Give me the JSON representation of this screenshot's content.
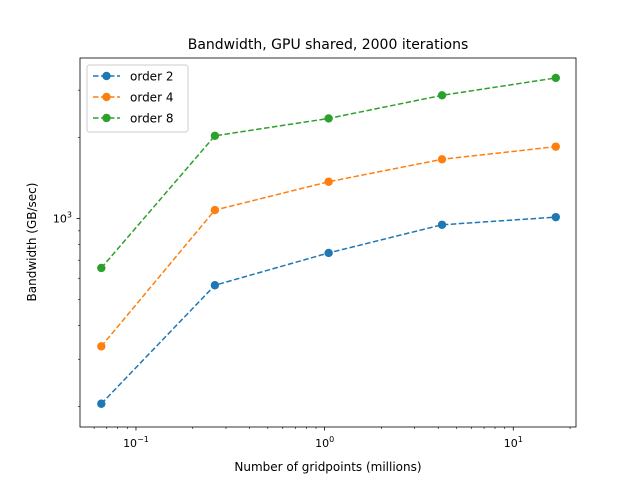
{
  "chart_data": {
    "type": "line",
    "title": "Bandwidth, GPU shared, 2000 iterations",
    "xlabel": "Number of gridpoints (millions)",
    "ylabel": "Bandwidth (GB/sec)",
    "xscale": "log",
    "yscale": "log",
    "xlim": [
      0.0505,
      21.5
    ],
    "ylim": [
      168,
      3950
    ],
    "x_ticks": [
      {
        "value": 0.1,
        "base": "10",
        "exp": "−1"
      },
      {
        "value": 1,
        "base": "10",
        "exp": "0"
      },
      {
        "value": 10,
        "base": "10",
        "exp": "1"
      }
    ],
    "y_ticks": [
      {
        "value": 1000,
        "base": "10",
        "exp": "3"
      }
    ],
    "x": [
      0.0655,
      0.262,
      1.05,
      4.19,
      16.8
    ],
    "series": [
      {
        "name": "order 2",
        "color": "#1f77b4",
        "values": [
          205,
          565,
          745,
          948,
          1012
        ]
      },
      {
        "name": "order 4",
        "color": "#ff7f0e",
        "values": [
          335,
          1075,
          1370,
          1660,
          1850
        ]
      },
      {
        "name": "order 8",
        "color": "#2ca02c",
        "values": [
          655,
          2030,
          2355,
          2870,
          3330
        ]
      }
    ],
    "legend_position": "top-left",
    "marker": "circle",
    "linestyle": "dashed",
    "grid": false
  }
}
